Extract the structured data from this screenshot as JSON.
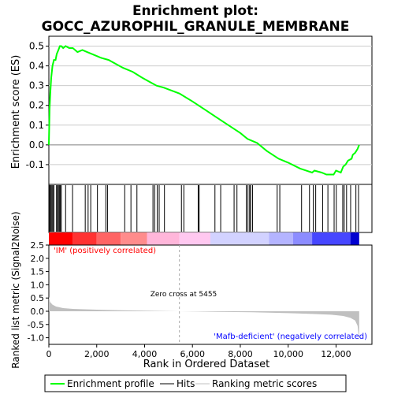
{
  "title_line1": "Enrichment plot:",
  "title_line2": "GOCC_AZUROPHIL_GRANULE_MEMBRANE",
  "colors": {
    "es_line": "#00ff00",
    "hit": "#000000",
    "metric_fill": "#c0c0c0",
    "annotation_pos": "#ff0000",
    "annotation_neg": "#0000ff",
    "zero_cross": "#aaaaaa",
    "frame": "#000000",
    "grid": "#cccccc"
  },
  "labels": {
    "pos_phenotype": "'IM' (positively correlated)",
    "neg_phenotype": "'Mafb-deficient' (negatively correlated)",
    "zero_cross": "Zero cross at 5455"
  },
  "legend": {
    "items": [
      {
        "label": "Enrichment profile",
        "kind": "es"
      },
      {
        "label": "Hits",
        "kind": "hit"
      },
      {
        "label": "Ranking metric scores",
        "kind": "metric"
      }
    ]
  },
  "chart_data": {
    "type": "line",
    "n_genes": 12967,
    "xlabel": "Rank in Ordered Dataset",
    "x_ticks": [
      0,
      2000,
      4000,
      6000,
      8000,
      10000,
      12000
    ],
    "x_tick_labels": [
      "0",
      "2,000",
      "4,000",
      "6,000",
      "8,000",
      "10,000",
      "12,000"
    ],
    "xlim": [
      0,
      13500
    ],
    "es_panel": {
      "ylabel": "Enrichment score (ES)",
      "ylim": [
        -0.2,
        0.55
      ],
      "y_ticks": [
        -0.1,
        0.0,
        0.1,
        0.2,
        0.3,
        0.4,
        0.5
      ],
      "y_tick_labels": [
        "-0.1",
        "0.0",
        "0.1",
        "0.2",
        "0.3",
        "0.4",
        "0.5"
      ],
      "profile": [
        [
          0,
          0.0
        ],
        [
          30,
          0.18
        ],
        [
          60,
          0.26
        ],
        [
          100,
          0.34
        ],
        [
          150,
          0.4
        ],
        [
          210,
          0.43
        ],
        [
          280,
          0.43
        ],
        [
          330,
          0.46
        ],
        [
          400,
          0.48
        ],
        [
          460,
          0.5
        ],
        [
          520,
          0.5
        ],
        [
          600,
          0.49
        ],
        [
          700,
          0.5
        ],
        [
          850,
          0.49
        ],
        [
          1000,
          0.49
        ],
        [
          1200,
          0.47
        ],
        [
          1400,
          0.48
        ],
        [
          1600,
          0.47
        ],
        [
          1800,
          0.46
        ],
        [
          2000,
          0.45
        ],
        [
          2200,
          0.44
        ],
        [
          2500,
          0.43
        ],
        [
          2800,
          0.41
        ],
        [
          3100,
          0.39
        ],
        [
          3500,
          0.37
        ],
        [
          3900,
          0.34
        ],
        [
          4200,
          0.32
        ],
        [
          4500,
          0.3
        ],
        [
          4800,
          0.29
        ],
        [
          5455,
          0.26
        ],
        [
          6000,
          0.22
        ],
        [
          6500,
          0.18
        ],
        [
          7000,
          0.14
        ],
        [
          7500,
          0.1
        ],
        [
          8000,
          0.06
        ],
        [
          8300,
          0.03
        ],
        [
          8700,
          0.01
        ],
        [
          9100,
          -0.03
        ],
        [
          9600,
          -0.07
        ],
        [
          10000,
          -0.09
        ],
        [
          10500,
          -0.12
        ],
        [
          11000,
          -0.14
        ],
        [
          11100,
          -0.13
        ],
        [
          11400,
          -0.14
        ],
        [
          11600,
          -0.15
        ],
        [
          11900,
          -0.15
        ],
        [
          12000,
          -0.13
        ],
        [
          12200,
          -0.14
        ],
        [
          12300,
          -0.11
        ],
        [
          12400,
          -0.1
        ],
        [
          12500,
          -0.08
        ],
        [
          12650,
          -0.07
        ],
        [
          12700,
          -0.05
        ],
        [
          12800,
          -0.04
        ],
        [
          12900,
          -0.02
        ],
        [
          12967,
          0.0
        ]
      ]
    },
    "hits": [
      20,
      60,
      90,
      130,
      170,
      210,
      320,
      360,
      400,
      440,
      480,
      520,
      700,
      990,
      1520,
      1640,
      1750,
      2030,
      2380,
      2450,
      3170,
      3430,
      3680,
      4350,
      4420,
      4530,
      4610,
      4830,
      5540,
      5640,
      6240,
      6280,
      6940,
      7180,
      7740,
      7860,
      8250,
      8320,
      8390,
      8430,
      8510,
      9540,
      9650,
      10560,
      10890,
      11050,
      11150,
      11440,
      11660,
      11920,
      12010,
      12280,
      12340,
      12440,
      12610,
      12830,
      12940
    ],
    "heatmap": {
      "segments": [
        {
          "from": 0,
          "to": 1000,
          "color": "#ff0000"
        },
        {
          "from": 1000,
          "to": 2000,
          "color": "#ff3232"
        },
        {
          "from": 2000,
          "to": 3000,
          "color": "#ff6464"
        },
        {
          "from": 3000,
          "to": 4100,
          "color": "#ff8c8c"
        },
        {
          "from": 4100,
          "to": 5455,
          "color": "#ffb6da"
        },
        {
          "from": 5455,
          "to": 6750,
          "color": "#ffc8f0"
        },
        {
          "from": 6750,
          "to": 9200,
          "color": "#d2d2ff"
        },
        {
          "from": 9200,
          "to": 10200,
          "color": "#b4b4ff"
        },
        {
          "from": 10200,
          "to": 11000,
          "color": "#8c8cff"
        },
        {
          "from": 11000,
          "to": 12600,
          "color": "#4646ff"
        },
        {
          "from": 12600,
          "to": 12967,
          "color": "#0000d0"
        }
      ]
    },
    "metric_panel": {
      "ylabel": "Ranked list metric (Signal2Noise)",
      "ylim": [
        -1.25,
        2.5
      ],
      "y_ticks": [
        -1.0,
        -0.5,
        0.0,
        0.5,
        1.0,
        1.5,
        2.0,
        2.5
      ],
      "y_tick_labels": [
        "-1.0",
        "-0.5",
        "0.0",
        "0.5",
        "1.0",
        "1.5",
        "2.0",
        "2.5"
      ],
      "zero_cross": 5455,
      "profile": [
        [
          0,
          0.55
        ],
        [
          50,
          0.35
        ],
        [
          150,
          0.25
        ],
        [
          300,
          0.18
        ],
        [
          600,
          0.12
        ],
        [
          1000,
          0.09
        ],
        [
          2000,
          0.06
        ],
        [
          3000,
          0.04
        ],
        [
          4000,
          0.02
        ],
        [
          5455,
          0.0
        ],
        [
          7000,
          -0.02
        ],
        [
          8500,
          -0.04
        ],
        [
          10000,
          -0.07
        ],
        [
          11000,
          -0.1
        ],
        [
          11800,
          -0.13
        ],
        [
          12300,
          -0.18
        ],
        [
          12600,
          -0.25
        ],
        [
          12800,
          -0.35
        ],
        [
          12900,
          -0.55
        ],
        [
          12967,
          -1.1
        ]
      ]
    }
  }
}
